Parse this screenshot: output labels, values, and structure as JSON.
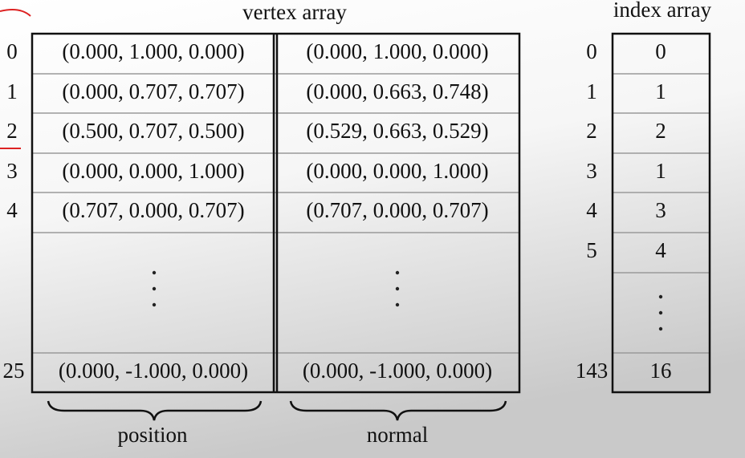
{
  "vertex_array": {
    "title": "vertex array",
    "rows": [
      {
        "index": "0",
        "position": "(0.000, 1.000, 0.000)",
        "normal": "(0.000, 1.000, 0.000)"
      },
      {
        "index": "1",
        "position": "(0.000, 0.707, 0.707)",
        "normal": "(0.000, 0.663, 0.748)"
      },
      {
        "index": "2",
        "position": "(0.500, 0.707, 0.500)",
        "normal": "(0.529, 0.663, 0.529)"
      },
      {
        "index": "3",
        "position": "(0.000, 0.000, 1.000)",
        "normal": "(0.000, 0.000, 1.000)"
      },
      {
        "index": "4",
        "position": "(0.707, 0.000, 0.707)",
        "normal": "(0.707, 0.000, 0.707)"
      },
      {
        "index": "25",
        "position": "(0.000, -1.000, 0.000)",
        "normal": "(0.000, -1.000, 0.000)"
      }
    ],
    "column_labels": {
      "position": "position",
      "normal": "normal"
    }
  },
  "index_array": {
    "title": "index array",
    "rows": [
      {
        "index": "0",
        "value": "0"
      },
      {
        "index": "1",
        "value": "1"
      },
      {
        "index": "2",
        "value": "2"
      },
      {
        "index": "3",
        "value": "1"
      },
      {
        "index": "4",
        "value": "3"
      },
      {
        "index": "5",
        "value": "4"
      },
      {
        "index": "143",
        "value": "16"
      }
    ]
  }
}
